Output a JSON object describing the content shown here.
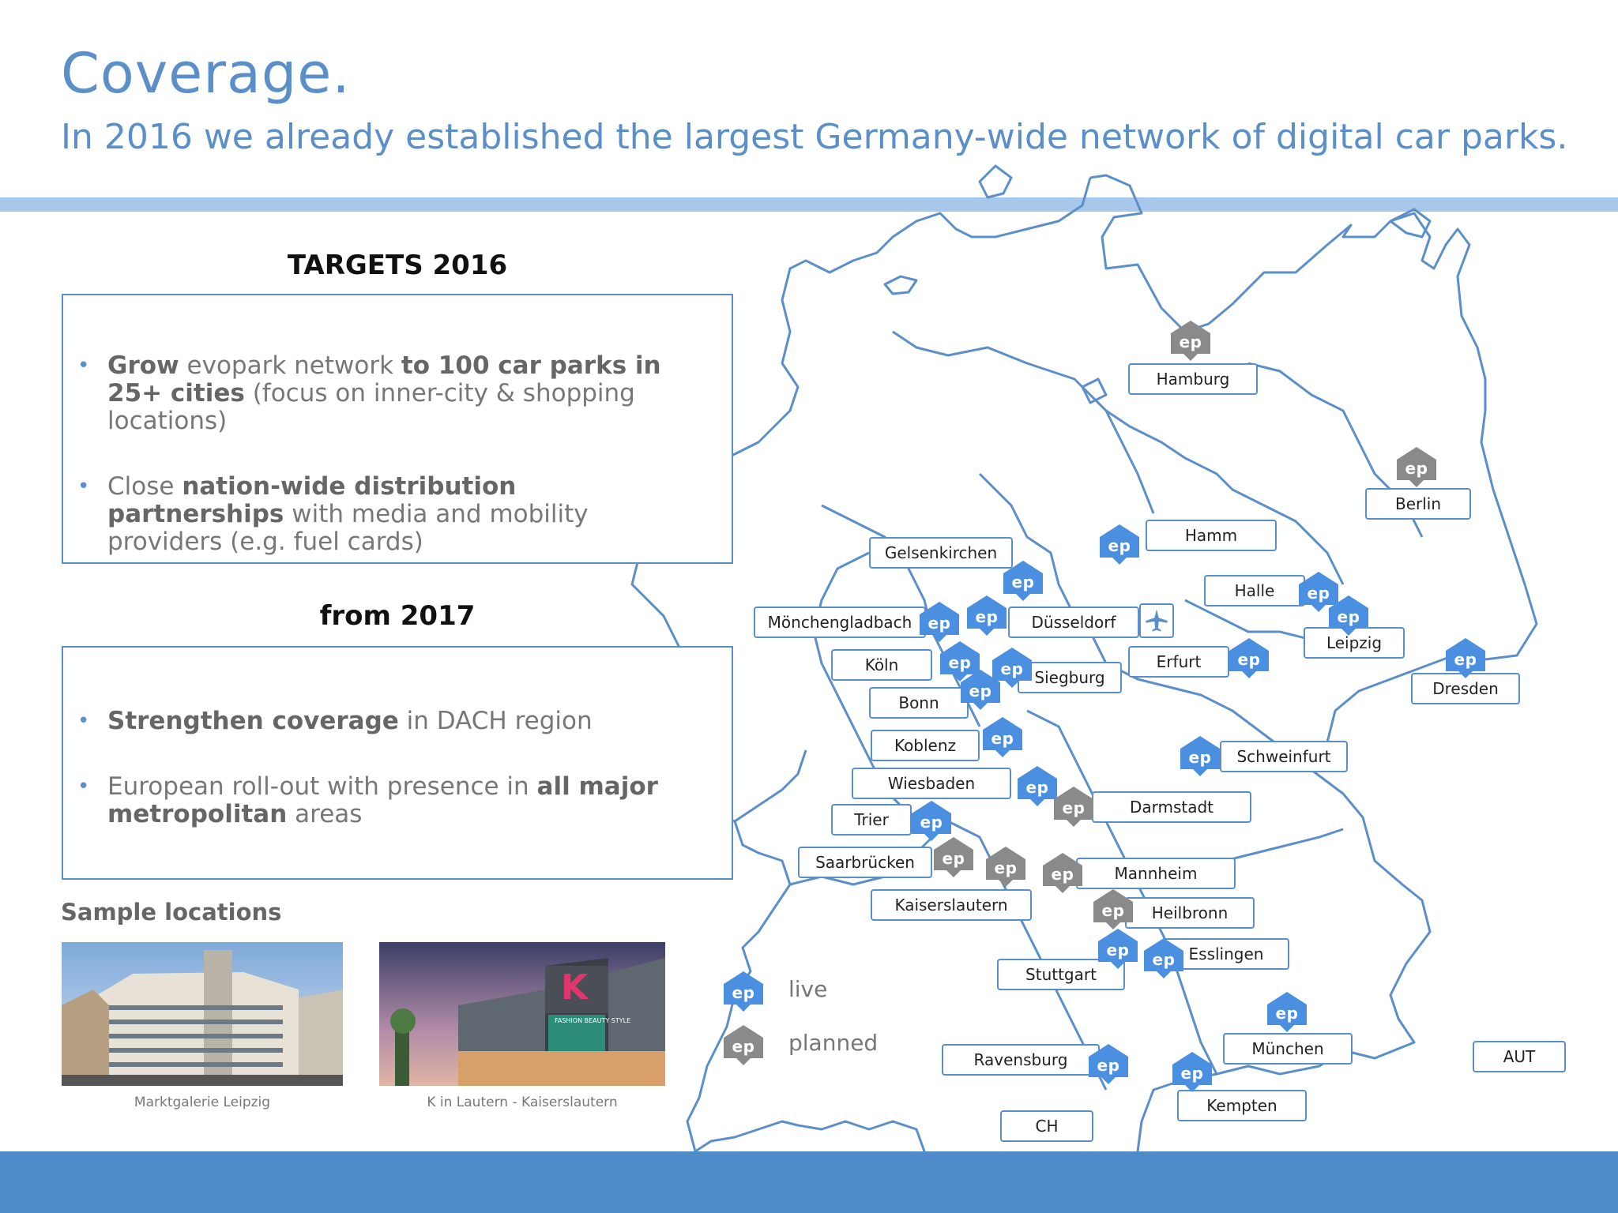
{
  "header": {
    "title": "Coverage.",
    "subtitle": "In 2016 we already established the largest Germany-wide network of digital car parks."
  },
  "targets_2016": {
    "heading": "TARGETS 2016",
    "bullets": [
      {
        "b1": "Grow",
        "t1": " evopark network ",
        "b2": "to 100 car parks in 25+ cities",
        "t2": " (focus on inner-city & shopping locations)"
      },
      {
        "t1": "Close ",
        "b1": "nation-wide distribution partnerships",
        "t2": " with media and mobility providers (e.g. fuel cards)"
      }
    ]
  },
  "from_2017": {
    "heading": "from 2017",
    "bullets": [
      {
        "b1": "Strengthen coverage",
        "t1": " in DACH region"
      },
      {
        "t1": "European roll-out with presence in ",
        "b1": "all major metropolitan",
        "t2": " areas"
      }
    ]
  },
  "samples": {
    "heading": "Sample locations",
    "items": [
      {
        "caption": "Marktgalerie Leipzig"
      },
      {
        "caption": "K in Lautern - Kaiserslautern",
        "signage": "FASHION BEAUTY STYLE",
        "logo_letter": "K"
      }
    ]
  },
  "legend": {
    "pin_label": "ep",
    "live": "live",
    "planned": "planned",
    "live_color": "#4a8fe0",
    "planned_color": "#8a8a8a"
  },
  "map": {
    "cities": [
      "Hamburg",
      "Berlin",
      "Hamm",
      "Gelsenkirchen",
      "Halle",
      "Mönchengladbach",
      "Düsseldorf",
      "Leipzig",
      "Köln",
      "Erfurt",
      "Siegburg",
      "Dresden",
      "Bonn",
      "Koblenz",
      "Schweinfurt",
      "Wiesbaden",
      "Darmstadt",
      "Trier",
      "Saarbrücken",
      "Mannheim",
      "Kaiserslautern",
      "Heilbronn",
      "Esslingen",
      "Stuttgart",
      "München",
      "AUT",
      "Ravensburg",
      "Kempten",
      "CH"
    ],
    "airport_icon": "airplane-icon"
  }
}
